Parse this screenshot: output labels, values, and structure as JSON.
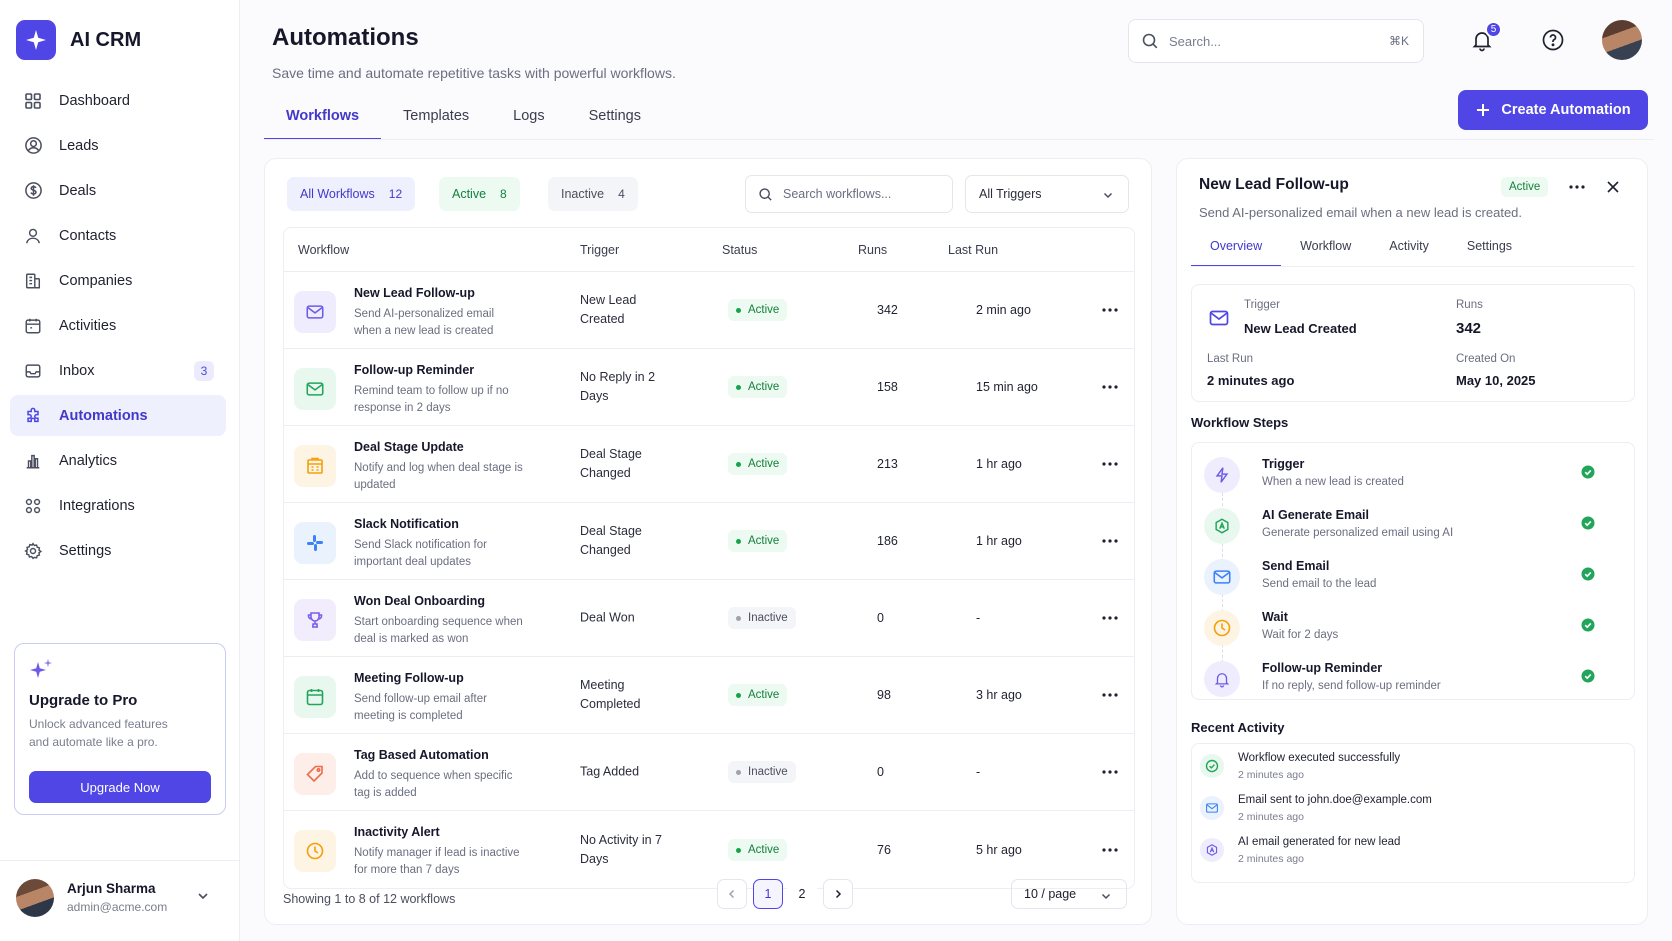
{
  "app": {
    "name": "AI CRM"
  },
  "sidebar": {
    "items": [
      {
        "label": "Dashboard",
        "icon": "grid-icon"
      },
      {
        "label": "Leads",
        "icon": "user-circle-icon"
      },
      {
        "label": "Deals",
        "icon": "dollar-icon"
      },
      {
        "label": "Contacts",
        "icon": "user-icon"
      },
      {
        "label": "Companies",
        "icon": "building-icon"
      },
      {
        "label": "Activities",
        "icon": "calendar-icon"
      },
      {
        "label": "Inbox",
        "icon": "inbox-icon",
        "badge": "3"
      },
      {
        "label": "Automations",
        "icon": "puzzle-icon",
        "active": true
      },
      {
        "label": "Analytics",
        "icon": "bar-chart-icon"
      },
      {
        "label": "Integrations",
        "icon": "apps-icon"
      },
      {
        "label": "Settings",
        "icon": "gear-icon"
      }
    ],
    "upgrade": {
      "title": "Upgrade to Pro",
      "text": "Unlock advanced features and automate like a pro.",
      "button": "Upgrade Now"
    },
    "user": {
      "name": "Arjun Sharma",
      "email": "admin@acme.com"
    }
  },
  "header": {
    "title": "Automations",
    "subtitle": "Save time and automate repetitive tasks with powerful workflows.",
    "search_placeholder": "Search...",
    "search_shortcut": "⌘K",
    "notifications": "5",
    "create_button": "Create Automation",
    "tabs": [
      "Workflows",
      "Templates",
      "Logs",
      "Settings"
    ]
  },
  "filters": {
    "all": {
      "label": "All Workflows",
      "count": "12"
    },
    "active": {
      "label": "Active",
      "count": "8"
    },
    "inactive": {
      "label": "Inactive",
      "count": "4"
    },
    "search_placeholder": "Search workflows...",
    "trigger_select": "All Triggers"
  },
  "table": {
    "columns": [
      "Workflow",
      "Trigger",
      "Status",
      "Runs",
      "Last Run"
    ],
    "rows": [
      {
        "name": "New Lead Follow-up",
        "desc": "Send AI-personalized email when a new lead is created",
        "trigger": "New Lead Created",
        "status": "Active",
        "runs": "342",
        "last": "2 min ago",
        "icon": "mail-icon",
        "color": "#6d5ce8",
        "bg": "#efedfd"
      },
      {
        "name": "Follow-up Reminder",
        "desc": "Remind team to follow up if no response in 2 days",
        "trigger": "No Reply in 2 Days",
        "status": "Active",
        "runs": "158",
        "last": "15 min ago",
        "icon": "mail-icon",
        "color": "#22a55b",
        "bg": "#e9f8ef"
      },
      {
        "name": "Deal Stage Update",
        "desc": "Notify and log when deal stage is updated",
        "trigger": "Deal Stage Changed",
        "status": "Active",
        "runs": "213",
        "last": "1 hr ago",
        "icon": "building-icon",
        "color": "#f59e0b",
        "bg": "#fef4e4"
      },
      {
        "name": "Slack Notification",
        "desc": "Send Slack notification for important deal updates",
        "trigger": "Deal Stage Changed",
        "status": "Active",
        "runs": "186",
        "last": "1 hr ago",
        "icon": "slack-icon",
        "color": "#3b82f6",
        "bg": "#eaf2fe"
      },
      {
        "name": "Won Deal Onboarding",
        "desc": "Start onboarding sequence when deal is marked as won",
        "trigger": "Deal Won",
        "status": "Inactive",
        "runs": "0",
        "last": "-",
        "icon": "trophy-icon",
        "color": "#7c5ce8",
        "bg": "#f1edfd"
      },
      {
        "name": "Meeting Follow-up",
        "desc": "Send follow-up email after meeting is completed",
        "trigger": "Meeting Completed",
        "status": "Active",
        "runs": "98",
        "last": "3 hr ago",
        "icon": "calendar-icon",
        "color": "#22a55b",
        "bg": "#e9f8ef"
      },
      {
        "name": "Tag Based Automation",
        "desc": "Add to sequence when specific tag is added",
        "trigger": "Tag Added",
        "status": "Inactive",
        "runs": "0",
        "last": "-",
        "icon": "tag-icon",
        "color": "#ef6b4a",
        "bg": "#fdeee9"
      },
      {
        "name": "Inactivity Alert",
        "desc": "Notify manager if lead is inactive for more than 7 days",
        "trigger": "No Activity in 7 Days",
        "status": "Active",
        "runs": "76",
        "last": "5 hr ago",
        "icon": "clock-icon",
        "color": "#f59e0b",
        "bg": "#fef4e4"
      }
    ]
  },
  "pagination": {
    "showing": "Showing 1 to 8 of 12 workflows",
    "pages": [
      "1",
      "2"
    ],
    "current": "1",
    "per_page": "10 / page"
  },
  "detail": {
    "title": "New Lead Follow-up",
    "status": "Active",
    "subtitle": "Send AI-personalized email when a new lead is created.",
    "tabs": [
      "Overview",
      "Workflow",
      "Activity",
      "Settings"
    ],
    "trigger_label": "Trigger",
    "trigger_value": "New Lead Created",
    "runs_label": "Runs",
    "runs_value": "342",
    "last_run_label": "Last Run",
    "last_run_value": "2 minutes ago",
    "created_label": "Created On",
    "created_value": "May 10, 2025",
    "steps_title": "Workflow Steps",
    "steps": [
      {
        "name": "Trigger",
        "desc": "When a new lead is created",
        "icon": "bolt-icon",
        "color": "#6d5ce8",
        "bg": "#efedfd"
      },
      {
        "name": "AI Generate Email",
        "desc": "Generate personalized email using AI",
        "icon": "ai-icon",
        "color": "#22a55b",
        "bg": "#e9f8ef"
      },
      {
        "name": "Send Email",
        "desc": "Send email to the lead",
        "icon": "mail-icon",
        "color": "#3b82f6",
        "bg": "#eaf2fe"
      },
      {
        "name": "Wait",
        "desc": "Wait for 2 days",
        "icon": "clock-icon",
        "color": "#f59e0b",
        "bg": "#fef4e4"
      },
      {
        "name": "Follow-up Reminder",
        "desc": "If no reply, send follow-up reminder",
        "icon": "bell-icon",
        "color": "#6d5ce8",
        "bg": "#efedfd"
      }
    ],
    "activity_title": "Recent Activity",
    "activity": [
      {
        "text": "Workflow executed successfully",
        "time": "2 minutes ago",
        "icon": "check-circle-icon",
        "color": "#22a55b",
        "bg": "#e9f8ef"
      },
      {
        "text": "Email sent to john.doe@example.com",
        "time": "2 minutes ago",
        "icon": "mail-icon",
        "color": "#3b82f6",
        "bg": "#eaf2fe"
      },
      {
        "text": "AI email generated for new lead",
        "time": "2 minutes ago",
        "icon": "ai-icon",
        "color": "#6d5ce8",
        "bg": "#efedfd"
      }
    ]
  }
}
